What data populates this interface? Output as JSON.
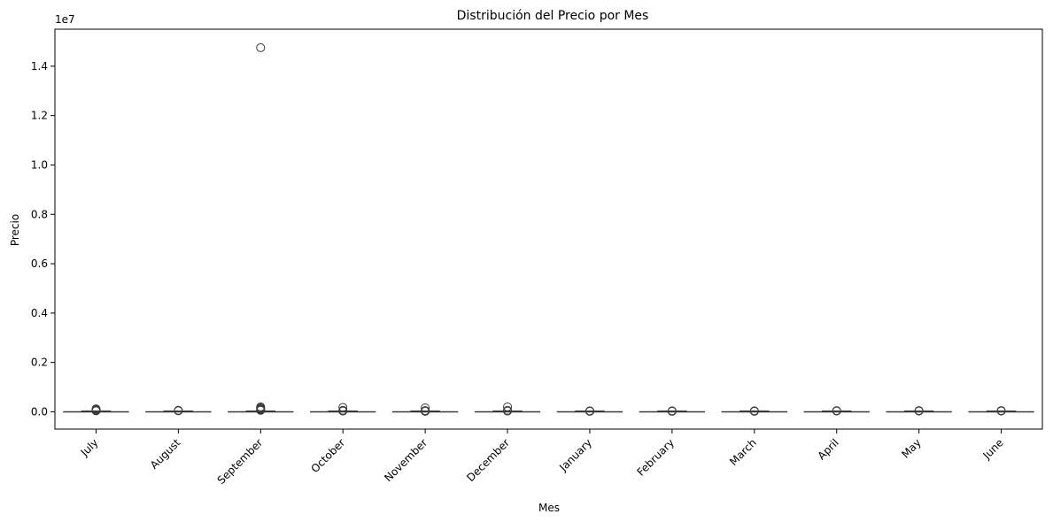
{
  "chart_data": {
    "type": "box",
    "title": "Distribución del Precio por Mes",
    "xlabel": "Mes",
    "ylabel": "Precio",
    "y_offset_label": "1e7",
    "y_scale_factor": 10000000,
    "ylim": [
      -0.07,
      1.55
    ],
    "yticks": [
      0.0,
      0.2,
      0.4,
      0.6,
      0.8,
      1.0,
      1.2,
      1.4
    ],
    "ytick_labels": [
      "0.0",
      "0.2",
      "0.4",
      "0.6",
      "0.8",
      "1.0",
      "1.2",
      "1.4"
    ],
    "categories": [
      "July",
      "August",
      "September",
      "October",
      "November",
      "December",
      "January",
      "February",
      "March",
      "April",
      "May",
      "June"
    ],
    "grid": false,
    "legend": "none",
    "box_color": "#3a3a3a",
    "boxes": [
      {
        "category": "July",
        "outliers": [
          120000,
          100000,
          80000,
          60000,
          40000
        ]
      },
      {
        "category": "August",
        "outliers": [
          60000,
          40000
        ]
      },
      {
        "category": "September",
        "outliers": [
          14750000,
          200000,
          160000,
          130000,
          100000,
          80000,
          60000
        ]
      },
      {
        "category": "October",
        "outliers": [
          180000,
          60000,
          30000
        ]
      },
      {
        "category": "November",
        "outliers": [
          160000,
          50000,
          20000
        ]
      },
      {
        "category": "December",
        "outliers": [
          200000,
          60000,
          30000
        ]
      },
      {
        "category": "January",
        "outliers": [
          40000,
          20000
        ]
      },
      {
        "category": "February",
        "outliers": [
          40000,
          20000
        ]
      },
      {
        "category": "March",
        "outliers": [
          40000,
          20000
        ]
      },
      {
        "category": "April",
        "outliers": [
          50000,
          30000
        ]
      },
      {
        "category": "May",
        "outliers": [
          50000,
          30000
        ]
      },
      {
        "category": "June",
        "outliers": [
          50000,
          30000
        ]
      }
    ]
  }
}
